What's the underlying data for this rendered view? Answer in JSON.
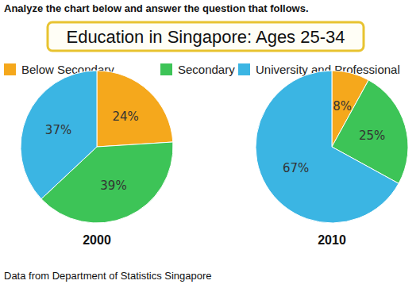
{
  "instruction": "Analyze the chart below and answer the question that follows.",
  "title": "Education in Singapore: Ages 25-34",
  "source": "Data from Department of Statistics Singapore",
  "chart_data": [
    {
      "type": "pie",
      "title": "2000",
      "categories": [
        "Below Secondary",
        "Secondary",
        "University and Professional"
      ],
      "values": [
        24,
        39,
        37
      ],
      "value_labels": [
        "24%",
        "39%",
        "37%"
      ],
      "colors": [
        "#f5a81c",
        "#3dc457",
        "#3bb5e3"
      ],
      "data_labels": true,
      "legend": "top"
    },
    {
      "type": "pie",
      "title": "2010",
      "categories": [
        "Below Secondary",
        "Secondary",
        "University and Professional"
      ],
      "values": [
        8,
        25,
        67
      ],
      "value_labels": [
        "8%",
        "25%",
        "67%"
      ],
      "colors": [
        "#f5a81c",
        "#3dc457",
        "#3bb5e3"
      ],
      "data_labels": true
    }
  ]
}
